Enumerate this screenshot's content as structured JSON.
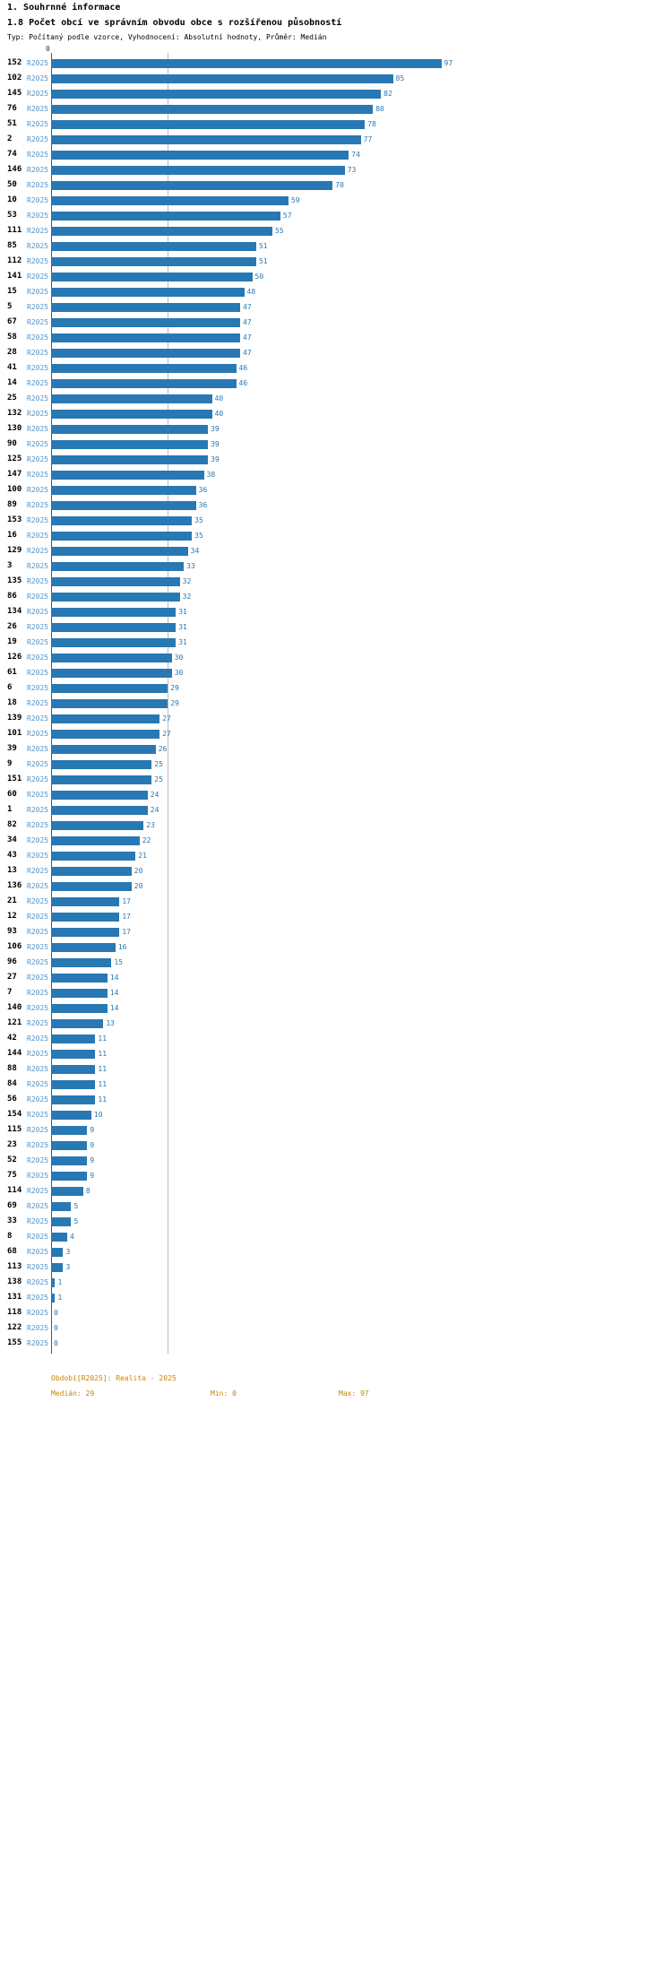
{
  "header": {
    "title": "1. Souhrnné informace",
    "subtitle": "1.8 Počet obcí ve správním obvodu obce s rozšířenou působností",
    "meta": "Typ: Počítaný podle vzorce, Vyhodnocení: Absolutní hodnoty, Průměr: Medián"
  },
  "chart_data": {
    "type": "bar",
    "orientation": "horizontal",
    "series_label": "R2025",
    "x_axis_zero": "0",
    "xlim": [
      0,
      97
    ],
    "median": 29,
    "grid": "median-line-only",
    "categories": [
      "152",
      "102",
      "145",
      "76",
      "51",
      "2",
      "74",
      "146",
      "50",
      "10",
      "53",
      "111",
      "85",
      "112",
      "141",
      "15",
      "5",
      "67",
      "58",
      "28",
      "41",
      "14",
      "25",
      "132",
      "130",
      "90",
      "125",
      "147",
      "100",
      "89",
      "153",
      "16",
      "129",
      "3",
      "135",
      "86",
      "134",
      "26",
      "19",
      "126",
      "61",
      "6",
      "18",
      "139",
      "101",
      "39",
      "9",
      "151",
      "60",
      "1",
      "82",
      "34",
      "43",
      "13",
      "136",
      "21",
      "12",
      "93",
      "106",
      "96",
      "27",
      "7",
      "140",
      "121",
      "42",
      "144",
      "88",
      "84",
      "56",
      "154",
      "115",
      "23",
      "52",
      "75",
      "114",
      "69",
      "33",
      "8",
      "68",
      "113",
      "138",
      "131",
      "118",
      "122",
      "155"
    ],
    "values": [
      97,
      85,
      82,
      80,
      78,
      77,
      74,
      73,
      70,
      59,
      57,
      55,
      51,
      51,
      50,
      48,
      47,
      47,
      47,
      47,
      46,
      46,
      40,
      40,
      39,
      39,
      39,
      38,
      36,
      36,
      35,
      35,
      34,
      33,
      32,
      32,
      31,
      31,
      31,
      30,
      30,
      29,
      29,
      27,
      27,
      26,
      25,
      25,
      24,
      24,
      23,
      22,
      21,
      20,
      20,
      17,
      17,
      17,
      16,
      15,
      14,
      14,
      14,
      13,
      11,
      11,
      11,
      11,
      11,
      10,
      9,
      9,
      9,
      9,
      8,
      5,
      5,
      4,
      3,
      3,
      1,
      1,
      0,
      0,
      0
    ]
  },
  "footer": {
    "period": "Období[R2025]: Realita - 2025",
    "median": "Medián: 29",
    "min": "Min: 0",
    "max": "Max: 97"
  },
  "colors": {
    "bar": "#2878b4",
    "series_label": "#4e94ce",
    "footer_text": "#cc8400",
    "median_line": "#bcbcbc",
    "axis_line": "#555555"
  }
}
